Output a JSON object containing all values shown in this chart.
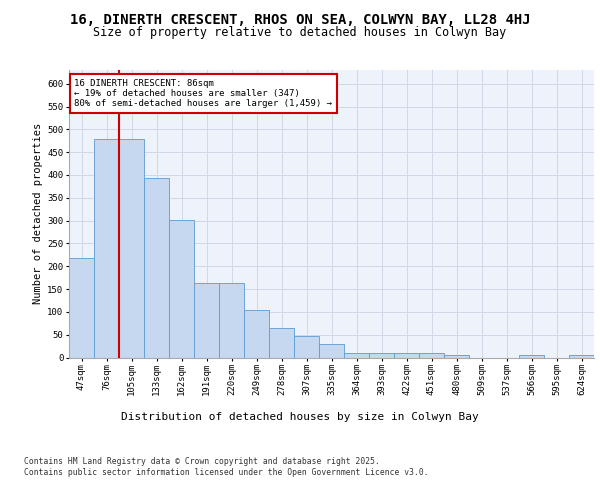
{
  "title": "16, DINERTH CRESCENT, RHOS ON SEA, COLWYN BAY, LL28 4HJ",
  "subtitle": "Size of property relative to detached houses in Colwyn Bay",
  "xlabel": "Distribution of detached houses by size in Colwyn Bay",
  "ylabel": "Number of detached properties",
  "categories": [
    "47sqm",
    "76sqm",
    "105sqm",
    "133sqm",
    "162sqm",
    "191sqm",
    "220sqm",
    "249sqm",
    "278sqm",
    "307sqm",
    "335sqm",
    "364sqm",
    "393sqm",
    "422sqm",
    "451sqm",
    "480sqm",
    "509sqm",
    "537sqm",
    "566sqm",
    "595sqm",
    "624sqm"
  ],
  "values": [
    218,
    478,
    478,
    394,
    301,
    163,
    163,
    105,
    65,
    47,
    30,
    10,
    10,
    10,
    10,
    5,
    0,
    0,
    5,
    0,
    5
  ],
  "bar_color": "#c5d8f0",
  "bar_edge_color": "#5b9bd5",
  "grid_color": "#d0d8e8",
  "background_color": "#eef2fa",
  "vline_color": "#cc0000",
  "annotation_text": "16 DINERTH CRESCENT: 86sqm\n← 19% of detached houses are smaller (347)\n80% of semi-detached houses are larger (1,459) →",
  "annotation_box_color": "#cc0000",
  "ylim": [
    0,
    630
  ],
  "yticks": [
    0,
    50,
    100,
    150,
    200,
    250,
    300,
    350,
    400,
    450,
    500,
    550,
    600
  ],
  "footer": "Contains HM Land Registry data © Crown copyright and database right 2025.\nContains public sector information licensed under the Open Government Licence v3.0.",
  "title_fontsize": 10,
  "subtitle_fontsize": 8.5,
  "tick_fontsize": 6.5,
  "label_fontsize": 8,
  "ylabel_fontsize": 7.5,
  "footer_fontsize": 5.8
}
